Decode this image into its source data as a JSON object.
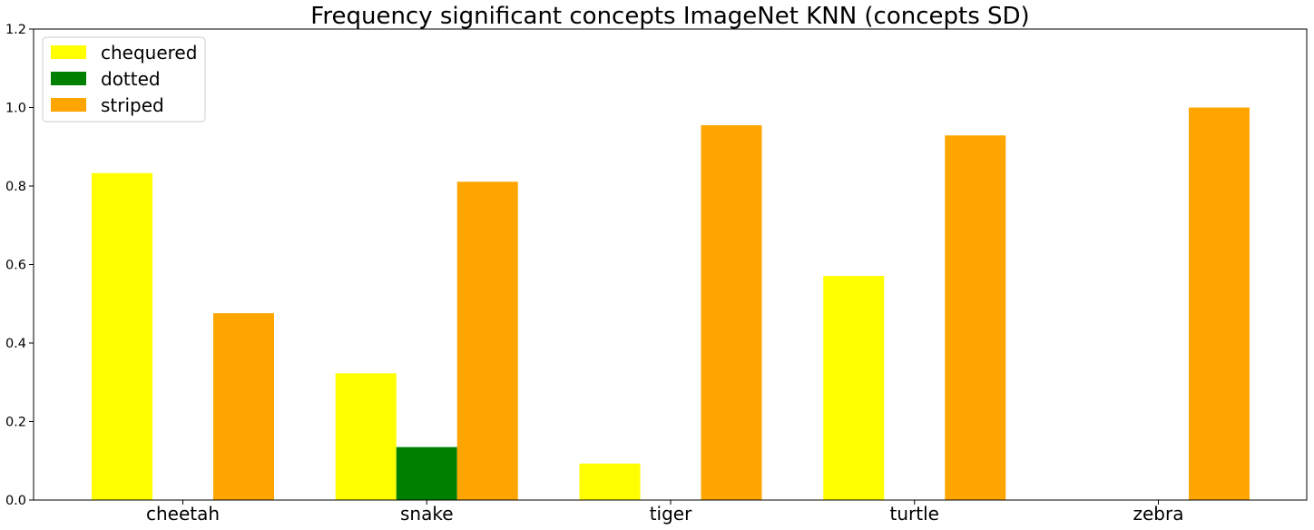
{
  "chart_data": {
    "type": "bar",
    "title": "Frequency significant concepts ImageNet KNN (concepts SD)",
    "xlabel": "",
    "ylabel": "",
    "categories": [
      "cheetah",
      "snake",
      "tiger",
      "turtle",
      "zebra"
    ],
    "series": [
      {
        "name": "chequered",
        "color": "#ffff00",
        "values": [
          0.833,
          0.323,
          0.093,
          0.571,
          0.0
        ]
      },
      {
        "name": "dotted",
        "color": "#008000",
        "values": [
          0.0,
          0.135,
          0.0,
          0.0,
          0.0
        ]
      },
      {
        "name": "striped",
        "color": "#ffa500",
        "values": [
          0.476,
          0.811,
          0.955,
          0.929,
          1.0
        ]
      }
    ],
    "ylim": [
      0,
      1.2
    ],
    "yticks": [
      "0.0",
      "0.2",
      "0.4",
      "0.6",
      "0.8",
      "1.0",
      "1.2"
    ],
    "grid": false,
    "legend_position": "top-left"
  }
}
